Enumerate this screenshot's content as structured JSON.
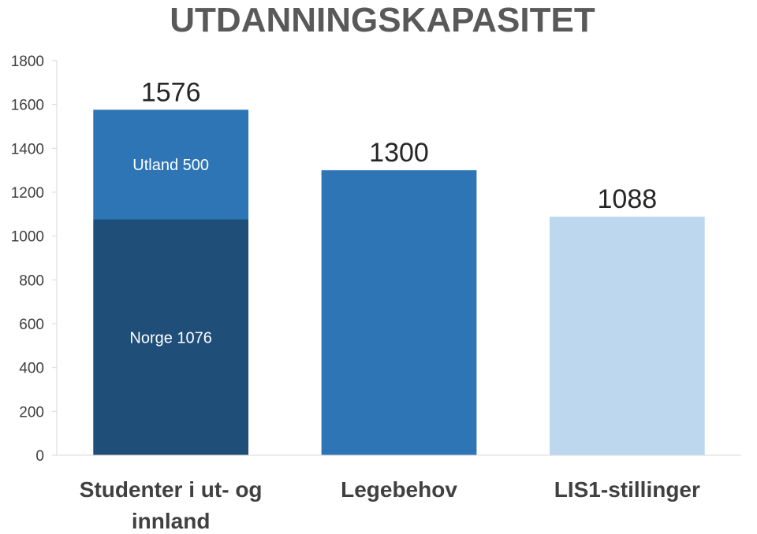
{
  "chart_data": {
    "type": "bar",
    "stacked": true,
    "title": "UTDANNINGSKAPASITET",
    "xlabel": "",
    "ylabel": "",
    "ylim": [
      0,
      1800
    ],
    "yticks": [
      "0",
      "200",
      "400",
      "600",
      "800",
      "1000",
      "1200",
      "1400",
      "1600",
      "1800"
    ],
    "grid": false,
    "legend": "none",
    "categories": [
      [
        "Studenter i ut- og",
        "innland"
      ],
      [
        "Legebehov"
      ],
      [
        "LIS1-stillinger"
      ]
    ],
    "totals": [
      "1576",
      "1300",
      "1088"
    ],
    "bars": [
      {
        "segments": [
          {
            "value": 1076,
            "label": "Norge 1076",
            "color": "#1f4e79"
          },
          {
            "value": 500,
            "label": "Utland 500",
            "color": "#2e75b6"
          }
        ]
      },
      {
        "segments": [
          {
            "value": 1300,
            "label": "",
            "color": "#2e75b6"
          }
        ]
      },
      {
        "segments": [
          {
            "value": 1088,
            "label": "",
            "color": "#bdd7ee"
          }
        ]
      }
    ],
    "colors": {
      "axis": "#d9d9d9",
      "text": "#404040",
      "title": "#595959"
    }
  }
}
